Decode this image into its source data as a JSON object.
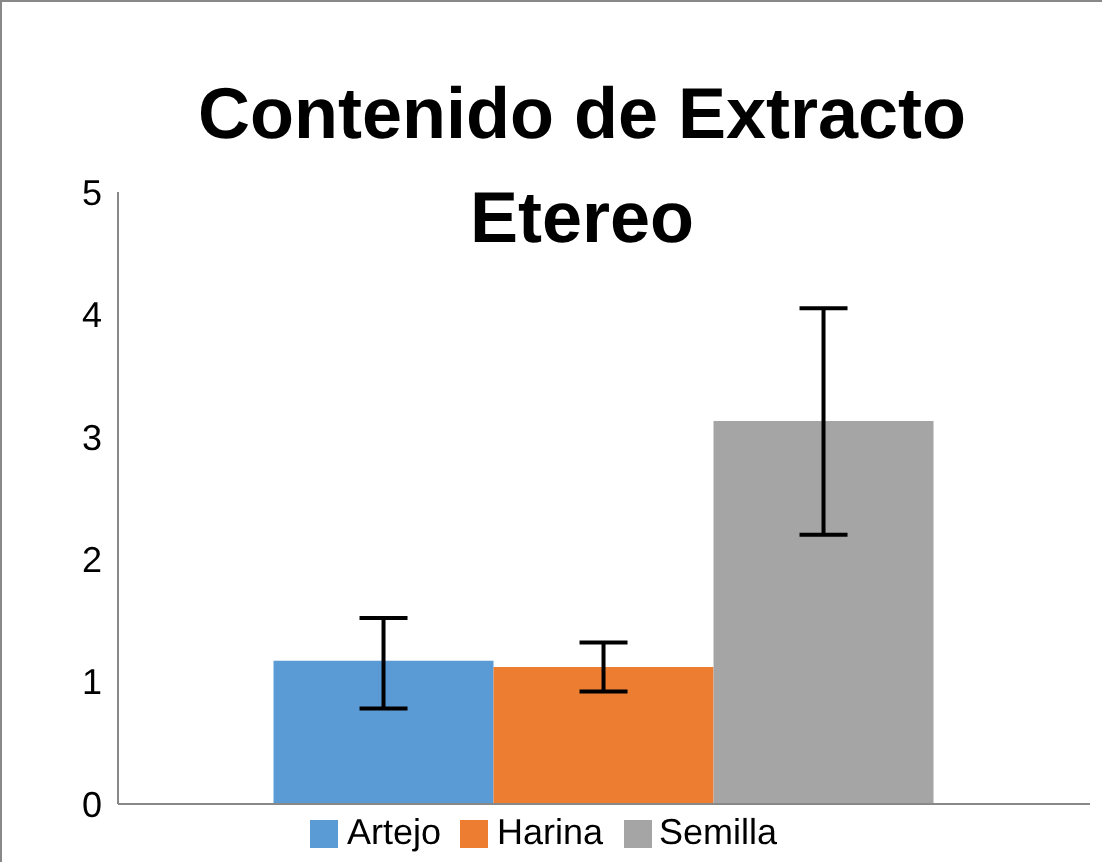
{
  "chart_data": {
    "type": "bar",
    "title": "Contenido de Extracto Etereo",
    "categories": [
      null
    ],
    "series": [
      {
        "name": "Artejo",
        "color": "#5b9bd5",
        "values": [
          1.17
        ],
        "errors": [
          [
            0.78,
            1.52
          ]
        ]
      },
      {
        "name": "Harina",
        "color": "#ed7d31",
        "values": [
          1.12
        ],
        "errors": [
          [
            0.92,
            1.32
          ]
        ]
      },
      {
        "name": "Semilla",
        "color": "#a5a5a5",
        "values": [
          3.13
        ],
        "errors": [
          [
            2.2,
            4.05
          ]
        ]
      }
    ],
    "ylim": [
      0,
      5
    ],
    "yticks": [
      0,
      1,
      2,
      3,
      4,
      5
    ],
    "grid": false,
    "legend": "bottom"
  }
}
